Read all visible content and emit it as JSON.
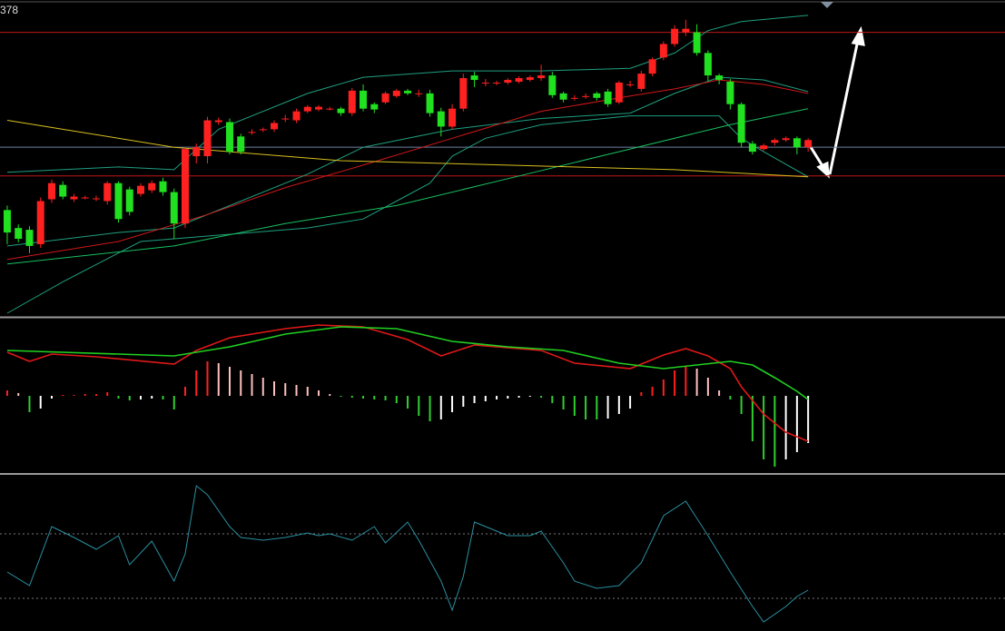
{
  "chart_data": [
    {
      "type": "candlestick",
      "label": "378",
      "xlim": [
        -0.65,
        89.7
      ],
      "ylim": [
        0,
        348
      ],
      "up_color": "#ff2020",
      "down_color": "#20e020",
      "x": [
        0,
        1,
        2,
        3,
        4,
        5,
        6,
        7,
        8,
        9,
        10,
        11,
        12,
        13,
        14,
        15,
        16,
        17,
        18,
        19,
        20,
        21,
        22,
        23,
        24,
        25,
        26,
        27,
        28,
        29,
        30,
        31,
        32,
        33,
        34,
        35,
        36,
        37,
        38,
        39,
        40,
        41,
        42,
        43,
        44,
        45,
        46,
        47,
        48,
        49,
        50,
        51,
        52,
        53,
        54,
        55,
        56,
        57,
        58,
        59,
        60,
        61,
        62,
        63,
        64,
        65,
        66,
        67,
        68,
        69,
        70,
        71,
        72
      ],
      "open": [
        118,
        98,
        96,
        80,
        130,
        146,
        130,
        132,
        131,
        128,
        148,
        141,
        136,
        140,
        150,
        138,
        103,
        178,
        178,
        216,
        216,
        200,
        205,
        208,
        208,
        220,
        218,
        228,
        230,
        231,
        231,
        226,
        251,
        236,
        238,
        245,
        251,
        248,
        248,
        228,
        211,
        231,
        268,
        260,
        260,
        260,
        261,
        263,
        265,
        268,
        248,
        243,
        245,
        248,
        250,
        238,
        258,
        253,
        270,
        288,
        303,
        316,
        316,
        293,
        268,
        261,
        236,
        192,
        186,
        193,
        196,
        198,
        188
      ],
      "high": [
        123,
        102,
        100,
        132,
        152,
        150,
        136,
        134,
        134,
        150,
        150,
        144,
        148,
        151,
        154,
        142,
        188,
        192,
        222,
        221,
        220,
        203,
        208,
        210,
        218,
        224,
        231,
        235,
        235,
        233,
        233,
        254,
        258,
        238,
        250,
        253,
        253,
        252,
        252,
        232,
        236,
        270,
        272,
        264,
        262,
        265,
        267,
        268,
        280,
        272,
        250,
        246,
        248,
        250,
        253,
        262,
        262,
        273,
        288,
        306,
        324,
        330,
        325,
        296,
        270,
        264,
        238,
        195,
        192,
        198,
        200,
        200,
        198
      ],
      "low": [
        80,
        82,
        70,
        76,
        126,
        130,
        127,
        130,
        128,
        124,
        104,
        112,
        133,
        137,
        134,
        86,
        98,
        170,
        170,
        213,
        180,
        180,
        202,
        205,
        205,
        216,
        215,
        226,
        228,
        229,
        223,
        223,
        228,
        226,
        236,
        243,
        246,
        244,
        222,
        200,
        208,
        228,
        255,
        256,
        257,
        258,
        259,
        261,
        262,
        243,
        238,
        240,
        242,
        240,
        233,
        236,
        255,
        250,
        267,
        285,
        300,
        312,
        290,
        262,
        258,
        230,
        188,
        180,
        184,
        190,
        194,
        180,
        183
      ],
      "close": [
        93,
        86,
        78,
        128,
        148,
        133,
        133,
        132,
        131,
        148,
        108,
        116,
        145,
        148,
        138,
        103,
        186,
        188,
        218,
        218,
        183,
        183,
        205,
        208,
        215,
        220,
        228,
        233,
        233,
        231,
        226,
        251,
        231,
        230,
        248,
        251,
        248,
        248,
        226,
        211,
        231,
        265,
        263,
        260,
        260,
        263,
        265,
        266,
        268,
        246,
        241,
        243,
        245,
        243,
        236,
        260,
        258,
        270,
        286,
        303,
        320,
        320,
        293,
        268,
        263,
        236,
        193,
        183,
        190,
        196,
        198,
        188,
        196
      ],
      "lines": [
        {
          "color": "#1f9f7f",
          "x": [
            0,
            10,
            15,
            19,
            27,
            32,
            40,
            48,
            56,
            60,
            63,
            66,
            72
          ],
          "values": [
            160,
            166,
            163,
            208,
            248,
            266,
            273,
            273,
            276,
            293,
            318,
            328,
            335
          ]
        },
        {
          "color": "#1f9f7f",
          "x": [
            0,
            10,
            15,
            19,
            27,
            32,
            40,
            48,
            56,
            60,
            64,
            68,
            72
          ],
          "values": [
            78,
            93,
            98,
            118,
            158,
            188,
            208,
            220,
            226,
            248,
            266,
            263,
            250
          ]
        },
        {
          "color": "#1f9f7f",
          "x": [
            0,
            5,
            12,
            17,
            27,
            32,
            35,
            38,
            40,
            43,
            48,
            56,
            60,
            64,
            66,
            68,
            72
          ],
          "values": [
            3,
            38,
            83,
            88,
            98,
            108,
            128,
            148,
            178,
            198,
            213,
            223,
            223,
            223,
            198,
            183,
            155
          ]
        },
        {
          "color": "#18c060",
          "x": [
            0,
            15,
            25,
            35,
            45,
            55,
            65,
            72
          ],
          "values": [
            58,
            78,
            103,
            123,
            153,
            183,
            213,
            231
          ]
        },
        {
          "color": "#d01818",
          "x": [
            0,
            10,
            18,
            25,
            32,
            40,
            48,
            56,
            60,
            64,
            68,
            72
          ],
          "values": [
            63,
            83,
            113,
            143,
            168,
            198,
            228,
            245,
            253,
            263,
            258,
            248
          ]
        },
        {
          "color": "#d8c020",
          "x": [
            0,
            15,
            30,
            45,
            60,
            72
          ],
          "values": [
            218,
            188,
            173,
            168,
            163,
            155
          ]
        }
      ],
      "hlines": [
        {
          "value": 316,
          "color": "#c01818"
        },
        {
          "value": 156,
          "color": "#c01818"
        },
        {
          "value": 188,
          "color": "#7080a0"
        }
      ]
    },
    {
      "type": "macd",
      "xlim": [
        -0.65,
        89.7
      ],
      "ylim": [
        -85,
        85
      ],
      "colors": {
        "pos_up": "#ff2020",
        "pos_down": "#ffc0c0",
        "neg_down": "#30d030",
        "neg_up": "#ffffff"
      },
      "x": [
        0,
        1,
        2,
        3,
        4,
        5,
        6,
        7,
        8,
        9,
        10,
        11,
        12,
        13,
        14,
        15,
        16,
        17,
        18,
        19,
        20,
        21,
        22,
        23,
        24,
        25,
        26,
        27,
        28,
        29,
        30,
        31,
        32,
        33,
        34,
        35,
        36,
        37,
        38,
        39,
        40,
        41,
        42,
        43,
        44,
        45,
        46,
        47,
        48,
        49,
        50,
        51,
        52,
        53,
        54,
        55,
        56,
        57,
        58,
        59,
        60,
        61,
        62,
        63,
        64,
        65,
        66,
        67,
        68,
        69,
        70,
        71,
        72
      ],
      "values": [
        6,
        3,
        -18,
        -14,
        -3,
        1,
        1,
        2,
        2,
        4,
        -3,
        -5,
        -4,
        -3,
        -4,
        -15,
        10,
        28,
        38,
        36,
        32,
        28,
        24,
        20,
        16,
        14,
        12,
        10,
        6,
        2,
        -1,
        -2,
        -3,
        -4,
        -5,
        -8,
        -14,
        -22,
        -28,
        -26,
        -18,
        -12,
        -8,
        -6,
        -4,
        -3,
        -2,
        -1,
        -2,
        -8,
        -15,
        -22,
        -26,
        -26,
        -25,
        -20,
        -14,
        4,
        10,
        18,
        28,
        32,
        30,
        20,
        6,
        -4,
        -20,
        -50,
        -70,
        -78,
        -70,
        -62,
        -52
      ],
      "lines": [
        {
          "color": "#e01818",
          "x": [
            0,
            2,
            4,
            8,
            15,
            17,
            20,
            25,
            28,
            32,
            36,
            39,
            42,
            48,
            51,
            56,
            59,
            61,
            63,
            65,
            66,
            68,
            70,
            72
          ],
          "values": [
            48,
            38,
            46,
            43,
            35,
            50,
            64,
            74,
            78,
            76,
            62,
            44,
            56,
            50,
            36,
            30,
            45,
            52,
            44,
            30,
            10,
            -20,
            -40,
            -50
          ]
        },
        {
          "color": "#20d020",
          "x": [
            0,
            10,
            15,
            20,
            25,
            30,
            35,
            40,
            45,
            50,
            55,
            59,
            62,
            65,
            67,
            69,
            71,
            72
          ],
          "values": [
            50,
            46,
            44,
            54,
            68,
            76,
            74,
            60,
            54,
            50,
            36,
            30,
            34,
            38,
            34,
            20,
            5,
            -4
          ]
        }
      ]
    },
    {
      "type": "line",
      "xlim": [
        -0.65,
        89.7
      ],
      "ylim": [
        0,
        172
      ],
      "ref_lines": [
        107,
        36
      ],
      "lines": [
        {
          "color": "#2a8fa0",
          "x": [
            0,
            2,
            4,
            6,
            8,
            10,
            11,
            13,
            15,
            16,
            17,
            18,
            20,
            21,
            23,
            25,
            27,
            28,
            29,
            31,
            33,
            34,
            36,
            37,
            39,
            40,
            41,
            42,
            43,
            45,
            47,
            48,
            50,
            51,
            53,
            55,
            57,
            59,
            61,
            63,
            65,
            67,
            68,
            70,
            71,
            72
          ],
          "values": [
            65,
            50,
            115,
            103,
            90,
            105,
            73,
            99,
            55,
            85,
            160,
            150,
            115,
            103,
            100,
            103,
            108,
            105,
            107,
            100,
            115,
            97,
            120,
            100,
            55,
            23,
            60,
            120,
            115,
            105,
            105,
            110,
            75,
            55,
            47,
            50,
            75,
            127,
            143,
            105,
            65,
            27,
            10,
            27,
            38,
            45
          ]
        }
      ]
    }
  ]
}
